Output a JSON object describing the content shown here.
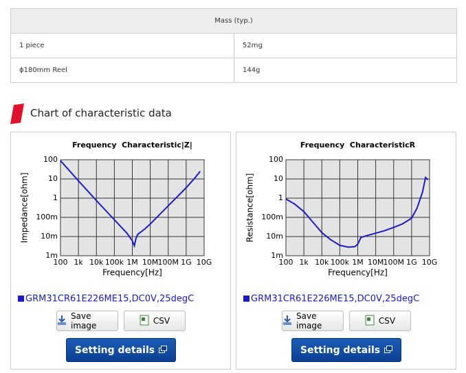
{
  "table": {
    "header": "Mass (typ.)",
    "rows": [
      [
        "1 piece",
        "52mg"
      ],
      [
        "ϕ180mm Reel",
        "144g"
      ]
    ]
  },
  "section_title": "Chart of characteristic data",
  "panels": [
    {
      "buttons": [
        "Save image",
        "CSV",
        "Setting details"
      ]
    },
    {
      "buttons": [
        "Save image",
        "CSV",
        "Setting details"
      ]
    }
  ],
  "chart_data": [
    {
      "type": "line",
      "title": "Frequency  Characteristic|Z|",
      "x_label": "Frequency[Hz]",
      "y_label": "Impedance[ohm]",
      "xscale": "log",
      "yscale": "log",
      "grid": true,
      "xlim": [
        100,
        10000000000
      ],
      "ylim": [
        0.001,
        100
      ],
      "xticks": [
        100,
        {
          "value": 1000,
          "label": "1k"
        },
        {
          "value": 10000,
          "label": "10k"
        },
        {
          "value": 100000,
          "label": "100k"
        },
        {
          "value": 1000000,
          "label": "1M"
        },
        {
          "value": 10000000,
          "label": "10M"
        },
        {
          "value": 100000000,
          "label": "100M"
        },
        {
          "value": 1000000000,
          "label": "1G"
        },
        {
          "value": 10000000000,
          "label": "10G"
        }
      ],
      "yticks": [
        {
          "value": 0.001,
          "label": "1m"
        },
        {
          "value": 0.01,
          "label": "10m"
        },
        {
          "value": 0.1,
          "label": "100m"
        },
        1,
        10,
        100
      ],
      "x": [
        100,
        1000,
        10000,
        100000,
        500000,
        1000000,
        1300000,
        1600000,
        2000000,
        5000000,
        10000000,
        100000000,
        1000000000,
        3000000000,
        6000000000
      ],
      "series": [
        {
          "name": "GRM31CR61E226ME15,DC0V,25degC",
          "color": "#1a1acc",
          "values": [
            90,
            8,
            0.75,
            0.075,
            0.015,
            0.006,
            0.0033,
            0.008,
            0.013,
            0.025,
            0.045,
            0.4,
            3.5,
            11,
            25
          ]
        }
      ]
    },
    {
      "type": "line",
      "title": "Frequency  CharacteristicR",
      "x_label": "Frequency[Hz]",
      "y_label": "Resistance[ohm]",
      "xscale": "log",
      "yscale": "log",
      "grid": true,
      "xlim": [
        100,
        10000000000
      ],
      "ylim": [
        0.001,
        100
      ],
      "xticks": [
        100,
        {
          "value": 1000,
          "label": "1k"
        },
        {
          "value": 10000,
          "label": "10k"
        },
        {
          "value": 100000,
          "label": "100k"
        },
        {
          "value": 1000000,
          "label": "1M"
        },
        {
          "value": 10000000,
          "label": "10M"
        },
        {
          "value": 100000000,
          "label": "100M"
        },
        {
          "value": 1000000000,
          "label": "1G"
        },
        {
          "value": 10000000000,
          "label": "10G"
        }
      ],
      "yticks": [
        {
          "value": 0.001,
          "label": "1m"
        },
        {
          "value": 0.01,
          "label": "10m"
        },
        {
          "value": 0.1,
          "label": "100m"
        },
        1,
        10,
        100
      ],
      "x": [
        100,
        300,
        1000,
        3000,
        10000,
        30000,
        100000,
        300000,
        700000,
        1000000,
        1500000,
        3000000,
        10000000,
        30000000,
        100000000,
        300000000,
        1000000000,
        2000000000,
        4000000000,
        6000000000,
        8000000000
      ],
      "series": [
        {
          "name": "GRM31CR61E226ME15,DC0V,25degC",
          "color": "#1a1acc",
          "values": [
            0.9,
            0.5,
            0.2,
            0.06,
            0.016,
            0.007,
            0.0035,
            0.0028,
            0.003,
            0.004,
            0.009,
            0.011,
            0.015,
            0.02,
            0.03,
            0.045,
            0.09,
            0.3,
            2,
            12,
            9
          ]
        }
      ]
    }
  ]
}
